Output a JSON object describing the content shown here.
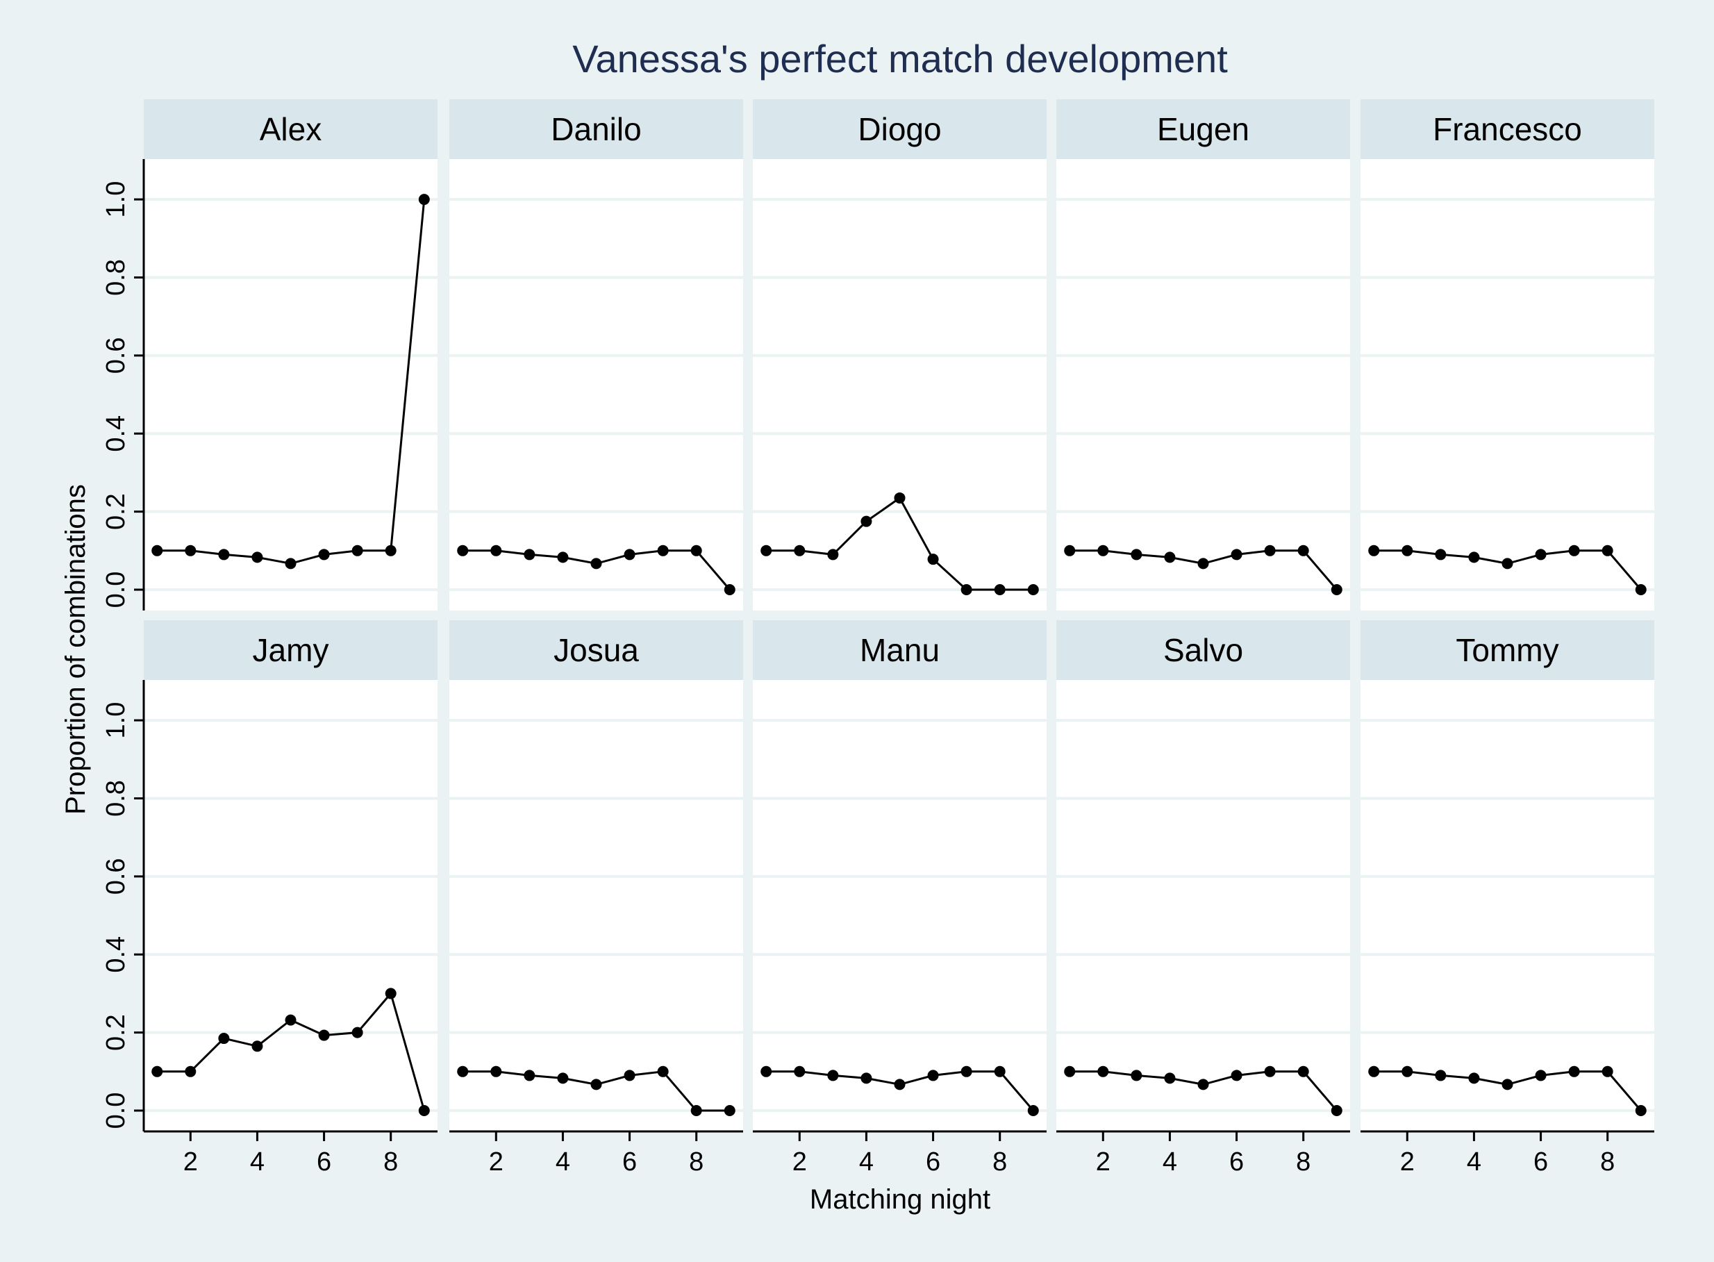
{
  "chart_data": {
    "type": "line",
    "title": "Vanessa's perfect match development",
    "xlabel": "Matching night",
    "ylabel": "Proportion of combinations",
    "x": [
      1,
      2,
      3,
      4,
      5,
      6,
      7,
      8,
      9
    ],
    "xticks": [
      2,
      4,
      6,
      8
    ],
    "xlim": [
      0.6,
      9.4
    ],
    "yticks": [
      0.0,
      0.2,
      0.4,
      0.6,
      0.8,
      1.0
    ],
    "ytick_labels": [
      "0.0",
      "0.2",
      "0.4",
      "0.6",
      "0.8",
      "1.0"
    ],
    "ylim": [
      0,
      1.05
    ],
    "grid": true,
    "layout": "2 rows x 5 columns small multiples",
    "colors": {
      "background": "#eaf2f3",
      "panel": "#ffffff",
      "strip": "#d9e6ec",
      "gridline": "#eaf2f3",
      "line": "#000000",
      "title": "#1f2d50"
    },
    "series": [
      {
        "name": "Alex",
        "values": [
          0.1,
          0.1,
          0.09,
          0.083,
          0.067,
          0.09,
          0.1,
          0.1,
          1.0
        ]
      },
      {
        "name": "Danilo",
        "values": [
          0.1,
          0.1,
          0.09,
          0.083,
          0.067,
          0.09,
          0.1,
          0.1,
          0.0
        ]
      },
      {
        "name": "Diogo",
        "values": [
          0.1,
          0.1,
          0.09,
          0.175,
          0.235,
          0.078,
          0.0,
          0.0,
          0.0
        ]
      },
      {
        "name": "Eugen",
        "values": [
          0.1,
          0.1,
          0.09,
          0.083,
          0.067,
          0.09,
          0.1,
          0.1,
          0.0
        ]
      },
      {
        "name": "Francesco",
        "values": [
          0.1,
          0.1,
          0.09,
          0.083,
          0.067,
          0.09,
          0.1,
          0.1,
          0.0
        ]
      },
      {
        "name": "Jamy",
        "values": [
          0.1,
          0.1,
          0.185,
          0.165,
          0.232,
          0.193,
          0.2,
          0.3,
          0.0
        ]
      },
      {
        "name": "Josua",
        "values": [
          0.1,
          0.1,
          0.09,
          0.083,
          0.067,
          0.09,
          0.1,
          0.0,
          0.0
        ]
      },
      {
        "name": "Manu",
        "values": [
          0.1,
          0.1,
          0.09,
          0.083,
          0.067,
          0.09,
          0.1,
          0.1,
          0.0
        ]
      },
      {
        "name": "Salvo",
        "values": [
          0.1,
          0.1,
          0.09,
          0.083,
          0.067,
          0.09,
          0.1,
          0.1,
          0.0
        ]
      },
      {
        "name": "Tommy",
        "values": [
          0.1,
          0.1,
          0.09,
          0.083,
          0.067,
          0.09,
          0.1,
          0.1,
          0.0
        ]
      }
    ]
  }
}
